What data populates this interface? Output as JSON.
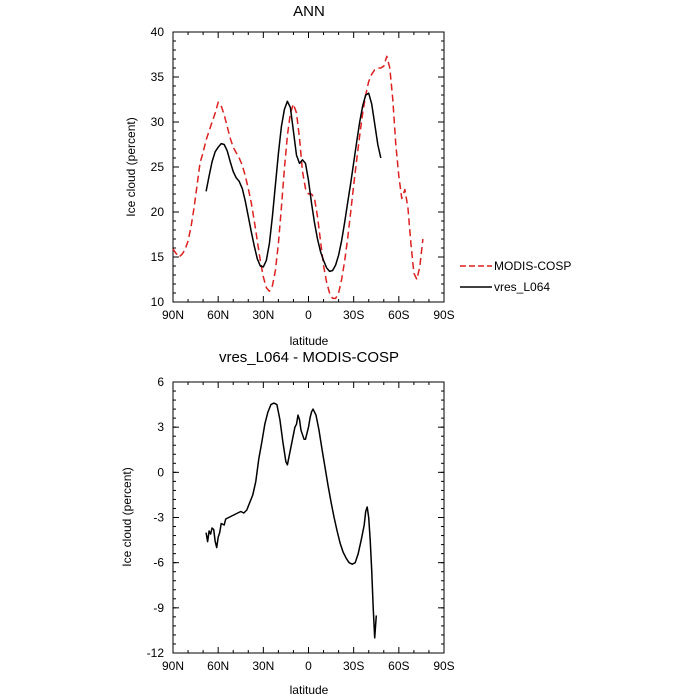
{
  "chart_data": [
    {
      "type": "line",
      "title": "ANN",
      "xlabel": "latitude",
      "ylabel": "Ice cloud (percent)",
      "x_ticks": [
        "90N",
        "60N",
        "30N",
        "0",
        "30S",
        "60S",
        "90S"
      ],
      "x_tick_values": [
        -90,
        -60,
        -30,
        0,
        30,
        60,
        90
      ],
      "xlim": [
        -90,
        90
      ],
      "y_ticks": [
        "10",
        "15",
        "20",
        "25",
        "30",
        "35",
        "40"
      ],
      "ylim": [
        10,
        40
      ],
      "legend": "outside-right",
      "series": [
        {
          "name": "MODIS-COSP",
          "color": "#dd2020",
          "dashed": true,
          "points": [
            [
              -90,
              15.9
            ],
            [
              -88,
              15.4
            ],
            [
              -86,
              15.0
            ],
            [
              -84,
              15.3
            ],
            [
              -82,
              15.8
            ],
            [
              -80,
              16.8
            ],
            [
              -78,
              18.4
            ],
            [
              -76,
              20.5
            ],
            [
              -74,
              23.0
            ],
            [
              -72,
              25.5
            ],
            [
              -70,
              26.6
            ],
            [
              -68,
              28.0
            ],
            [
              -66,
              29.0
            ],
            [
              -64,
              30.0
            ],
            [
              -62,
              31.0
            ],
            [
              -60,
              32.2
            ],
            [
              -58,
              31.8
            ],
            [
              -56,
              30.8
            ],
            [
              -54,
              29.5
            ],
            [
              -52,
              28.2
            ],
            [
              -50,
              27.2
            ],
            [
              -48,
              26.6
            ],
            [
              -46,
              26.0
            ],
            [
              -44,
              25.2
            ],
            [
              -42,
              24.0
            ],
            [
              -40,
              22.6
            ],
            [
              -38,
              21.0
            ],
            [
              -36,
              19.0
            ],
            [
              -34,
              16.8
            ],
            [
              -32,
              14.6
            ],
            [
              -30,
              12.8
            ],
            [
              -28,
              11.6
            ],
            [
              -26,
              11.2
            ],
            [
              -24,
              11.8
            ],
            [
              -22,
              13.5
            ],
            [
              -20,
              16.5
            ],
            [
              -18,
              20.5
            ],
            [
              -16,
              24.8
            ],
            [
              -14,
              28.5
            ],
            [
              -12,
              31.0
            ],
            [
              -10,
              32.0
            ],
            [
              -8,
              31.0
            ],
            [
              -6,
              28.2
            ],
            [
              -4,
              24.5
            ],
            [
              -2,
              22.6
            ],
            [
              0,
              22.0
            ],
            [
              2,
              22.0
            ],
            [
              4,
              21.5
            ],
            [
              6,
              19.5
            ],
            [
              8,
              16.8
            ],
            [
              10,
              14.0
            ],
            [
              12,
              12.2
            ],
            [
              14,
              11.0
            ],
            [
              16,
              10.4
            ],
            [
              18,
              10.4
            ],
            [
              20,
              11.0
            ],
            [
              22,
              12.5
            ],
            [
              24,
              14.5
            ],
            [
              26,
              17.0
            ],
            [
              28,
              20.0
            ],
            [
              30,
              23.0
            ],
            [
              32,
              25.8
            ],
            [
              34,
              28.5
            ],
            [
              36,
              31.0
            ],
            [
              38,
              33.0
            ],
            [
              40,
              34.5
            ],
            [
              42,
              35.3
            ],
            [
              44,
              35.8
            ],
            [
              46,
              36.0
            ],
            [
              48,
              36.0
            ],
            [
              50,
              36.2
            ],
            [
              52,
              37.3
            ],
            [
              54,
              36.0
            ],
            [
              56,
              32.5
            ],
            [
              58,
              27.5
            ],
            [
              60,
              24.0
            ],
            [
              62,
              21.5
            ],
            [
              64,
              22.5
            ],
            [
              66,
              20.5
            ],
            [
              68,
              16.5
            ],
            [
              70,
              13.2
            ],
            [
              72,
              12.5
            ],
            [
              74,
              14.0
            ],
            [
              76,
              17.0
            ]
          ]
        },
        {
          "name": "vres_L064",
          "color": "#000000",
          "dashed": false,
          "points": [
            [
              -68,
              22.3
            ],
            [
              -66,
              24.0
            ],
            [
              -64,
              25.6
            ],
            [
              -62,
              26.7
            ],
            [
              -60,
              27.2
            ],
            [
              -58,
              27.6
            ],
            [
              -56,
              27.5
            ],
            [
              -54,
              26.8
            ],
            [
              -52,
              25.6
            ],
            [
              -50,
              24.5
            ],
            [
              -48,
              23.8
            ],
            [
              -46,
              23.4
            ],
            [
              -44,
              22.6
            ],
            [
              -42,
              21.2
            ],
            [
              -40,
              19.5
            ],
            [
              -38,
              17.8
            ],
            [
              -36,
              16.2
            ],
            [
              -34,
              14.8
            ],
            [
              -32,
              14.0
            ],
            [
              -30,
              13.9
            ],
            [
              -28,
              14.6
            ],
            [
              -26,
              16.5
            ],
            [
              -24,
              19.5
            ],
            [
              -22,
              23.0
            ],
            [
              -20,
              26.5
            ],
            [
              -18,
              29.5
            ],
            [
              -16,
              31.4
            ],
            [
              -14,
              32.3
            ],
            [
              -12,
              31.6
            ],
            [
              -10,
              29.0
            ],
            [
              -8,
              26.3
            ],
            [
              -6,
              25.4
            ],
            [
              -4,
              25.8
            ],
            [
              -2,
              25.4
            ],
            [
              0,
              23.5
            ],
            [
              2,
              21.0
            ],
            [
              4,
              18.8
            ],
            [
              6,
              17.0
            ],
            [
              8,
              15.6
            ],
            [
              10,
              14.6
            ],
            [
              12,
              13.8
            ],
            [
              14,
              13.4
            ],
            [
              16,
              13.5
            ],
            [
              18,
              14.1
            ],
            [
              20,
              15.2
            ],
            [
              22,
              16.8
            ],
            [
              24,
              18.8
            ],
            [
              26,
              21.0
            ],
            [
              28,
              23.2
            ],
            [
              30,
              25.5
            ],
            [
              32,
              27.8
            ],
            [
              34,
              30.0
            ],
            [
              36,
              31.8
            ],
            [
              38,
              33.0
            ],
            [
              40,
              33.2
            ],
            [
              42,
              32.0
            ],
            [
              44,
              29.8
            ],
            [
              46,
              27.5
            ],
            [
              48,
              26.0
            ]
          ]
        }
      ]
    },
    {
      "type": "line",
      "title": "vres_L064 - MODIS-COSP",
      "xlabel": "latitude",
      "ylabel": "Ice cloud (percent)",
      "x_ticks": [
        "90N",
        "60N",
        "30N",
        "0",
        "30S",
        "60S",
        "90S"
      ],
      "x_tick_values": [
        -90,
        -60,
        -30,
        0,
        30,
        60,
        90
      ],
      "xlim": [
        -90,
        90
      ],
      "y_ticks": [
        "-12",
        "-9",
        "-6",
        "-3",
        "0",
        "3",
        "6"
      ],
      "ylim": [
        -12,
        6
      ],
      "series": [
        {
          "color": "#000000",
          "dashed": false,
          "points": [
            [
              -68,
              -4.0
            ],
            [
              -67,
              -4.6
            ],
            [
              -66,
              -3.9
            ],
            [
              -65,
              -4.1
            ],
            [
              -64,
              -3.7
            ],
            [
              -63,
              -3.8
            ],
            [
              -62,
              -4.6
            ],
            [
              -61,
              -5.0
            ],
            [
              -60,
              -4.3
            ],
            [
              -59,
              -4.0
            ],
            [
              -58,
              -3.4
            ],
            [
              -56,
              -3.5
            ],
            [
              -55,
              -3.1
            ],
            [
              -53,
              -3.0
            ],
            [
              -51,
              -2.9
            ],
            [
              -49,
              -2.8
            ],
            [
              -47,
              -2.7
            ],
            [
              -45,
              -2.6
            ],
            [
              -43,
              -2.7
            ],
            [
              -41,
              -2.5
            ],
            [
              -39,
              -2.0
            ],
            [
              -37,
              -1.5
            ],
            [
              -35,
              -0.6
            ],
            [
              -33,
              0.9
            ],
            [
              -31,
              2.0
            ],
            [
              -29,
              3.2
            ],
            [
              -27,
              4.0
            ],
            [
              -25,
              4.5
            ],
            [
              -23,
              4.6
            ],
            [
              -21,
              4.5
            ],
            [
              -19,
              3.5
            ],
            [
              -17,
              2.0
            ],
            [
              -15,
              0.7
            ],
            [
              -14,
              0.5
            ],
            [
              -13,
              1.0
            ],
            [
              -11,
              2.0
            ],
            [
              -9,
              3.0
            ],
            [
              -8,
              3.2
            ],
            [
              -7,
              3.8
            ],
            [
              -6,
              3.5
            ],
            [
              -5,
              2.8
            ],
            [
              -3,
              2.2
            ],
            [
              -2,
              2.2
            ],
            [
              0,
              3.0
            ],
            [
              1,
              3.6
            ],
            [
              2,
              4.0
            ],
            [
              3,
              4.2
            ],
            [
              5,
              3.8
            ],
            [
              7,
              2.8
            ],
            [
              9,
              1.5
            ],
            [
              11,
              0.3
            ],
            [
              13,
              -0.9
            ],
            [
              15,
              -2.0
            ],
            [
              17,
              -3.0
            ],
            [
              19,
              -3.9
            ],
            [
              21,
              -4.7
            ],
            [
              23,
              -5.3
            ],
            [
              25,
              -5.7
            ],
            [
              27,
              -6.0
            ],
            [
              29,
              -6.1
            ],
            [
              31,
              -6.0
            ],
            [
              33,
              -5.4
            ],
            [
              35,
              -4.5
            ],
            [
              37,
              -3.5
            ],
            [
              38,
              -2.6
            ],
            [
              39,
              -2.3
            ],
            [
              40,
              -3.0
            ],
            [
              41,
              -4.5
            ],
            [
              42,
              -6.5
            ],
            [
              43,
              -9.0
            ],
            [
              44,
              -11.0
            ],
            [
              45,
              -9.5
            ]
          ]
        }
      ]
    }
  ]
}
